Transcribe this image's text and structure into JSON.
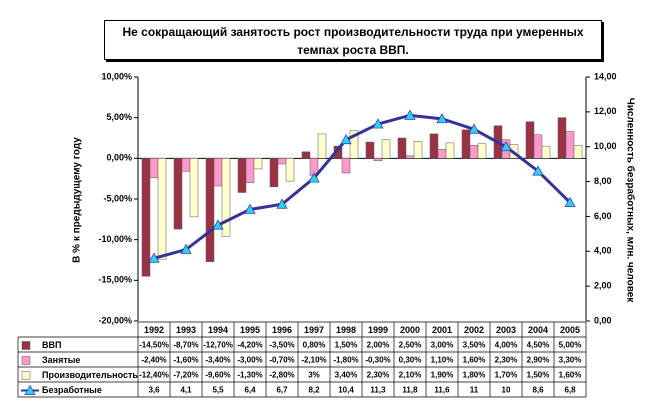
{
  "chart_data": {
    "type": "bar",
    "title": "Не сокращающий занятость рост производительности труда при умеренных темпах роста ВВП.",
    "y_label": "В % к предыдущему году",
    "y2_label": "Численность безработных, млн. человек",
    "categories": [
      "1992",
      "1993",
      "1994",
      "1995",
      "1996",
      "1997",
      "1998",
      "1999",
      "2000",
      "2001",
      "2002",
      "2003",
      "2004",
      "2005"
    ],
    "series": [
      {
        "name": "ВВП",
        "color": "#993344",
        "values": [
          -14.5,
          -8.7,
          -12.7,
          -4.2,
          -3.5,
          0.8,
          1.5,
          2.0,
          2.5,
          3.0,
          3.5,
          4.0,
          4.5,
          5.0
        ],
        "value_labels": [
          "-14,50%",
          "-8,70%",
          "-12,70%",
          "-4,20%",
          "-3,50%",
          "0,80%",
          "1,50%",
          "2,00%",
          "2,50%",
          "3,00%",
          "3,50%",
          "4,00%",
          "4,50%",
          "5,00%"
        ]
      },
      {
        "name": "Занятые",
        "color": "#ff99cc",
        "values": [
          -2.4,
          -1.6,
          -3.4,
          -3.0,
          -0.7,
          -2.1,
          -1.8,
          -0.3,
          0.3,
          1.1,
          1.6,
          2.3,
          2.9,
          3.3
        ],
        "value_labels": [
          "-2,40%",
          "-1,60%",
          "-3,40%",
          "-3,00%",
          "-0,70%",
          "-2,10%",
          "-1,80%",
          "-0,30%",
          "0,30%",
          "1,10%",
          "1,60%",
          "2,30%",
          "2,90%",
          "3,30%"
        ]
      },
      {
        "name": "Производительность",
        "color": "#ffffcc",
        "values": [
          -12.4,
          -7.2,
          -9.6,
          -1.3,
          -2.8,
          3,
          3.4,
          2.3,
          2.1,
          1.9,
          1.8,
          1.7,
          1.5,
          1.6
        ],
        "value_labels": [
          "-12,40%",
          "-7,20%",
          "-9,60%",
          "-1,30%",
          "-2,80%",
          "3%",
          "3,40%",
          "2,30%",
          "2,10%",
          "1,90%",
          "1,80%",
          "1,70%",
          "1,50%",
          "1,60%"
        ]
      },
      {
        "name": "Безработные",
        "color": "#333399",
        "marker_color": "#33ccff",
        "type": "line",
        "axis": "y2",
        "values": [
          3.6,
          4.1,
          5.5,
          6.4,
          6.7,
          8.2,
          10.4,
          11.3,
          11.8,
          11.6,
          11,
          10,
          8.6,
          6.8
        ],
        "value_labels": [
          "3,6",
          "4,1",
          "5,5",
          "6,4",
          "6,7",
          "8,2",
          "10,4",
          "11,3",
          "11,8",
          "11,6",
          "11",
          "10",
          "8,6",
          "6,8"
        ]
      }
    ],
    "ylim": [
      -20,
      10
    ],
    "yticks": [
      {
        "value": -20,
        "label": "-20,00%"
      },
      {
        "value": -15,
        "label": "-15,00%"
      },
      {
        "value": -10,
        "label": "-10,00%"
      },
      {
        "value": -5,
        "label": "-5,00%"
      },
      {
        "value": 0,
        "label": "0,00%"
      },
      {
        "value": 5,
        "label": "5,00%"
      },
      {
        "value": 10,
        "label": "10,00%"
      }
    ],
    "y2lim": [
      0,
      14
    ],
    "y2ticks": [
      {
        "value": 0,
        "label": "0,00"
      },
      {
        "value": 2,
        "label": "2,00"
      },
      {
        "value": 4,
        "label": "4,00"
      },
      {
        "value": 6,
        "label": "6,00"
      },
      {
        "value": 8,
        "label": "8,00"
      },
      {
        "value": 10,
        "label": "10,00"
      },
      {
        "value": 12,
        "label": "12,00"
      },
      {
        "value": 14,
        "label": "14,00"
      }
    ],
    "grid": false
  }
}
